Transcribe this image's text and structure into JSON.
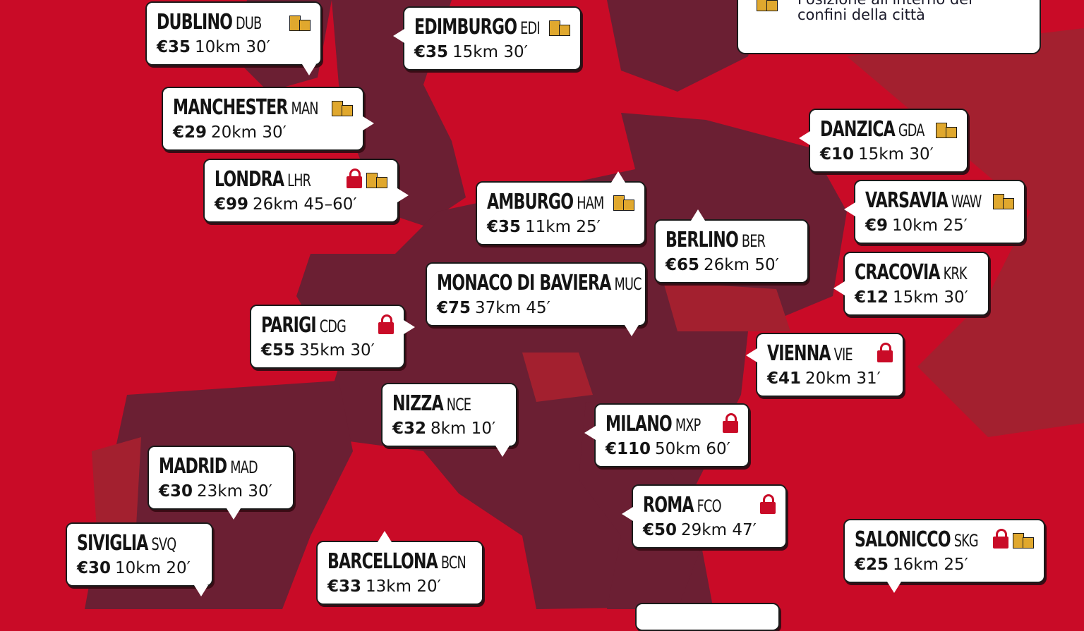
{
  "colors": {
    "sea": "#c90b27",
    "land": "#6b1f33",
    "land_alt": "#a3202f",
    "lock": "#c90b27",
    "building": "#e0a82e"
  },
  "legend": {
    "icon": "building-icon",
    "line1": "Posizione all'interno dei",
    "line2": "confini della città"
  },
  "airports": [
    {
      "city": "DUBLINO",
      "code": "DUB",
      "price": "€35",
      "details": "10km 30′",
      "lock": false,
      "building": true
    },
    {
      "city": "EDIMBURGO",
      "code": "EDI",
      "price": "€35",
      "details": "15km 30′",
      "lock": false,
      "building": true
    },
    {
      "city": "MANCHESTER",
      "code": "MAN",
      "price": "€29",
      "details": "20km 30′",
      "lock": false,
      "building": true
    },
    {
      "city": "LONDRA",
      "code": "LHR",
      "price": "€99",
      "details": "26km 45–60′",
      "lock": true,
      "building": true
    },
    {
      "city": "AMBURGO",
      "code": "HAM",
      "price": "€35",
      "details": "11km 25′",
      "lock": false,
      "building": true
    },
    {
      "city": "DANZICA",
      "code": "GDA",
      "price": "€10",
      "details": "15km 30′",
      "lock": false,
      "building": true
    },
    {
      "city": "VARSAVIA",
      "code": "WAW",
      "price": "€9",
      "details": "10km 25′",
      "lock": false,
      "building": true
    },
    {
      "city": "BERLINO",
      "code": "BER",
      "price": "€65",
      "details": "26km 50′",
      "lock": false,
      "building": false
    },
    {
      "city": "CRACOVIA",
      "code": "KRK",
      "price": "€12",
      "details": "15km 30′",
      "lock": false,
      "building": false
    },
    {
      "city": "MONACO DI BAVIERA",
      "code": "MUC",
      "price": "€75",
      "details": "37km 45′",
      "lock": false,
      "building": false
    },
    {
      "city": "PARIGI",
      "code": "CDG",
      "price": "€55",
      "details": "35km 30′",
      "lock": true,
      "building": false
    },
    {
      "city": "VIENNA",
      "code": "VIE",
      "price": "€41",
      "details": "20km 31′",
      "lock": true,
      "building": false
    },
    {
      "city": "NIZZA",
      "code": "NCE",
      "price": "€32",
      "details": "8km 10′",
      "lock": false,
      "building": false
    },
    {
      "city": "MILANO",
      "code": "MXP",
      "price": "€110",
      "details": "50km 60′",
      "lock": true,
      "building": false
    },
    {
      "city": "MADRID",
      "code": "MAD",
      "price": "€30",
      "details": "23km 30′",
      "lock": false,
      "building": false
    },
    {
      "city": "ROMA",
      "code": "FCO",
      "price": "€50",
      "details": "29km 47′",
      "lock": true,
      "building": false
    },
    {
      "city": "SIVIGLIA",
      "code": "SVQ",
      "price": "€30",
      "details": "10km 20′",
      "lock": false,
      "building": false
    },
    {
      "city": "BARCELLONA",
      "code": "BCN",
      "price": "€33",
      "details": "13km 20′",
      "lock": false,
      "building": false
    },
    {
      "city": "SALONICCO",
      "code": "SKG",
      "price": "€25",
      "details": "16km 25′",
      "lock": true,
      "building": true
    }
  ]
}
